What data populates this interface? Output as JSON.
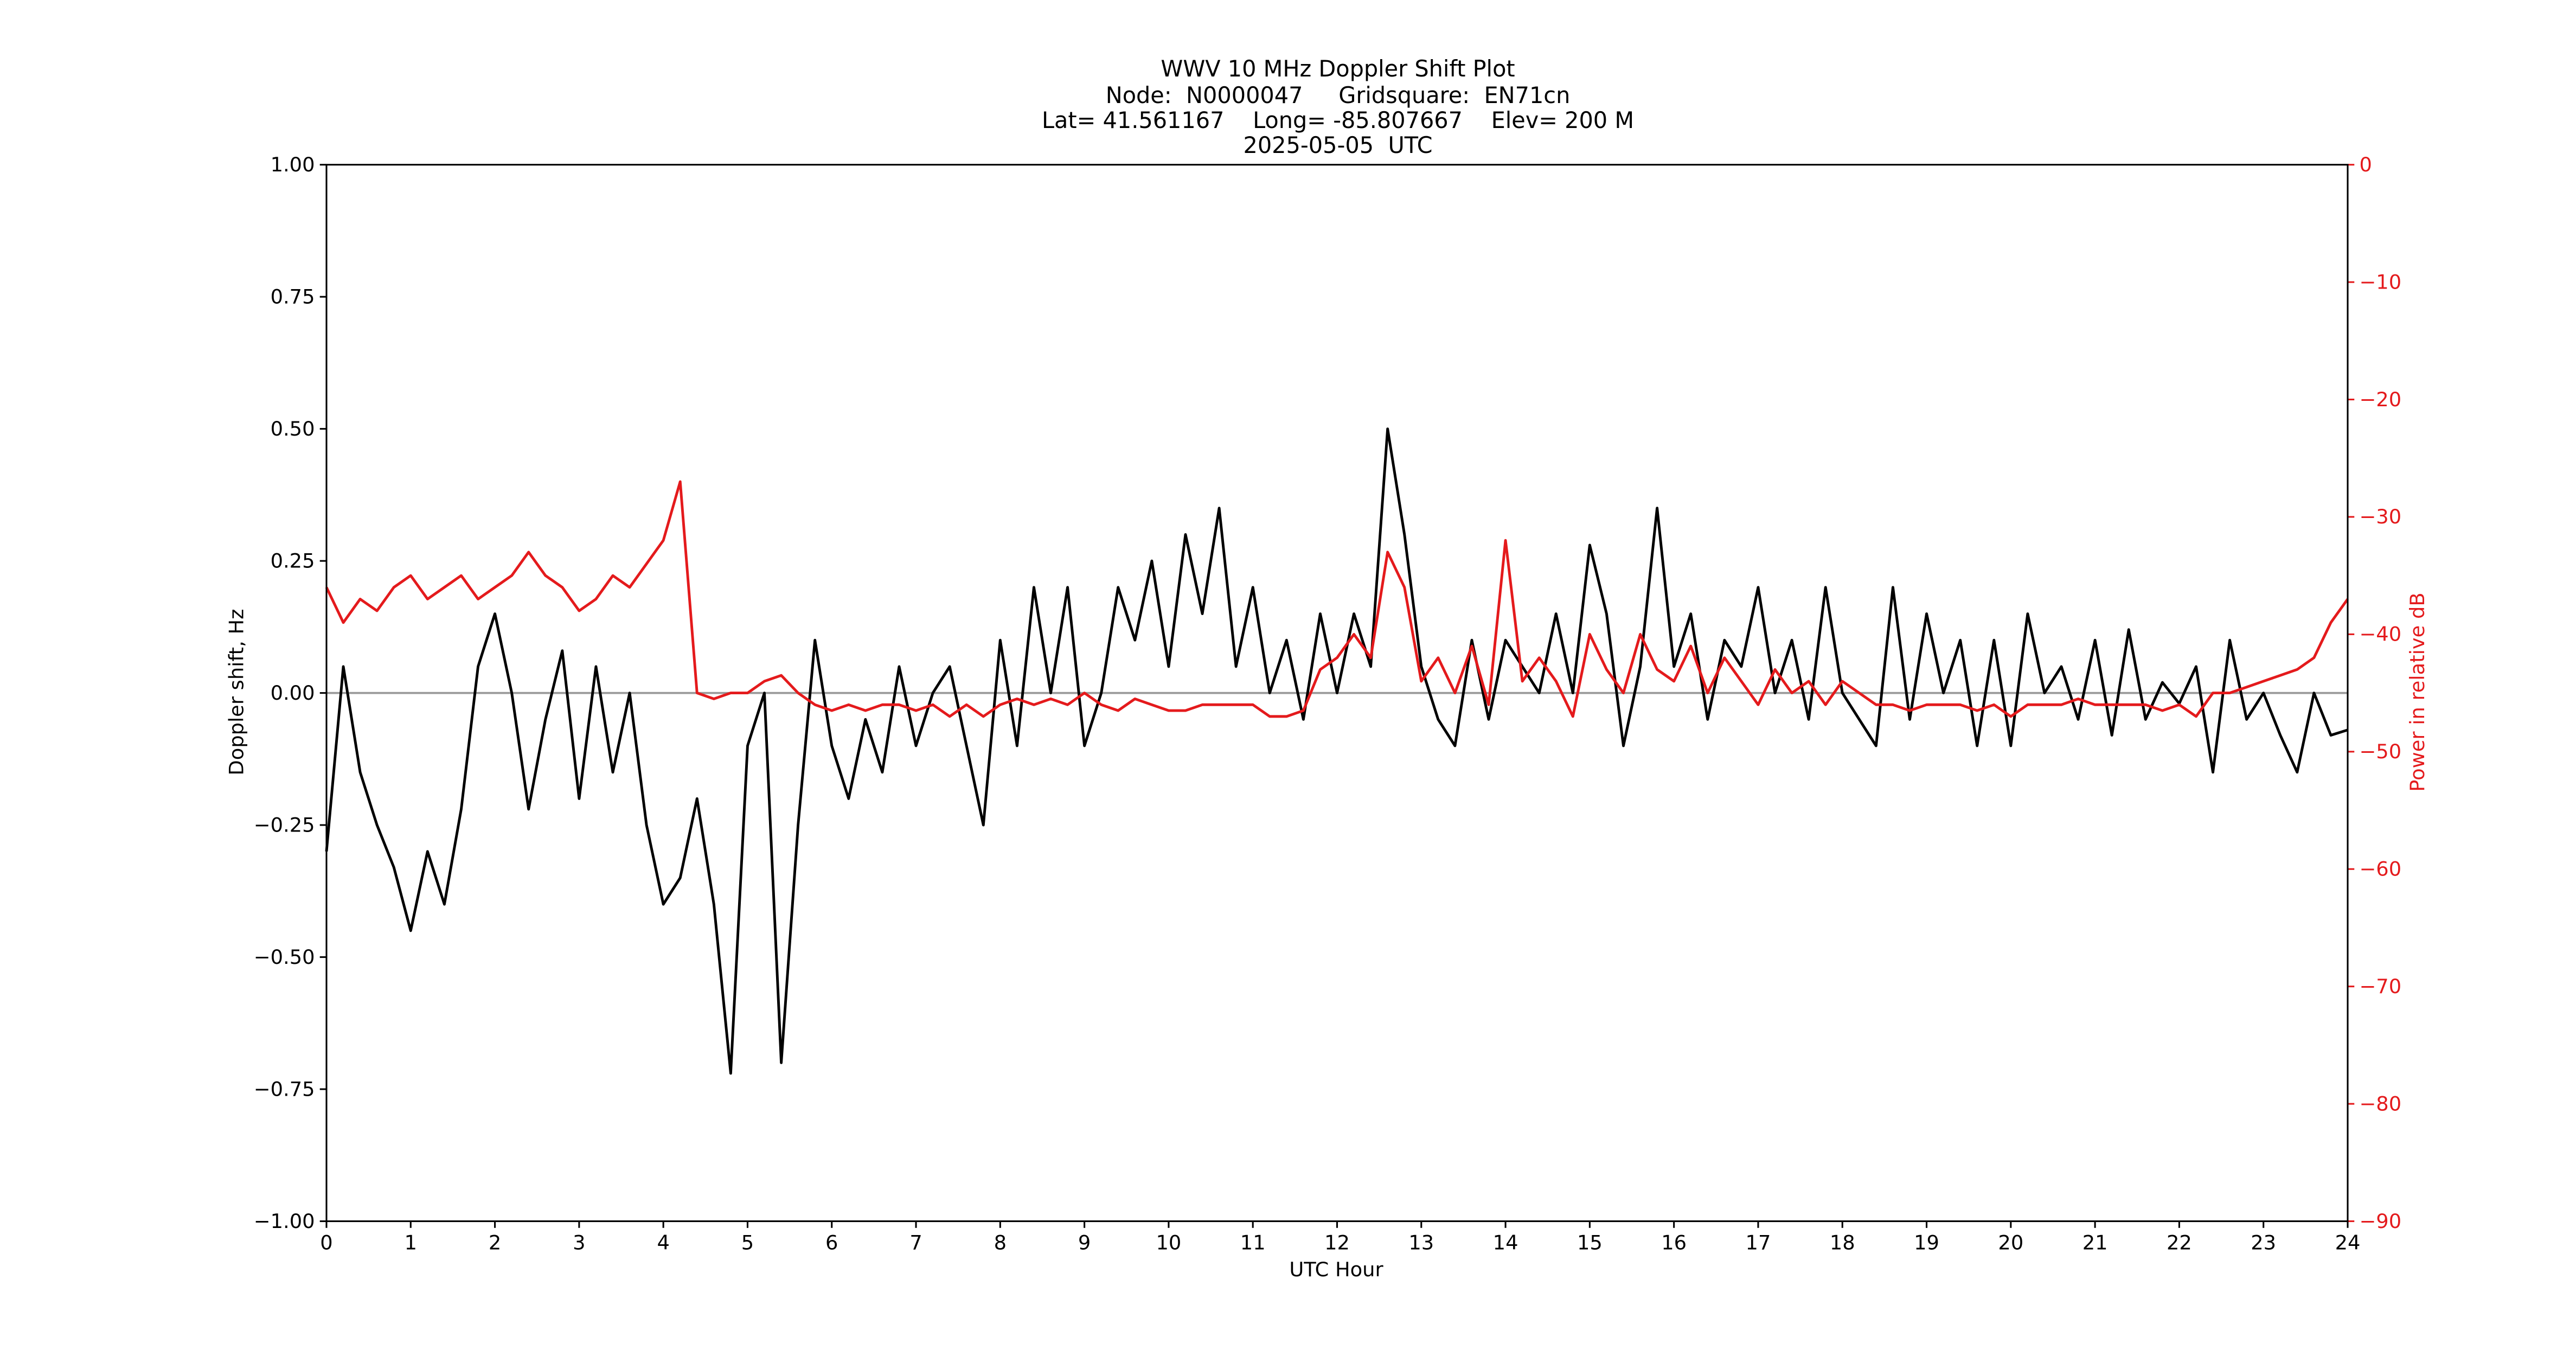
{
  "chart_data": {
    "type": "line",
    "title": [
      "WWV 10 MHz Doppler Shift Plot",
      "Node:  N0000047     Gridsquare:  EN71cn",
      "Lat= 41.561167    Long= -85.807667    Elev= 200 M",
      "2025-05-05  UTC"
    ],
    "x_label": "UTC Hour",
    "y_label": "Doppler shift, Hz",
    "y2_label": "Power in relative dB",
    "xlim": [
      0,
      24
    ],
    "xticks": [
      0,
      1,
      2,
      3,
      4,
      5,
      6,
      7,
      8,
      9,
      10,
      11,
      12,
      13,
      14,
      15,
      16,
      17,
      18,
      19,
      20,
      21,
      22,
      23,
      24
    ],
    "ylim": [
      -1,
      1
    ],
    "yticks": [
      {
        "value": -1,
        "label": "−1.00"
      },
      {
        "value": -0.75,
        "label": "−0.75"
      },
      {
        "value": -0.5,
        "label": "−0.50"
      },
      {
        "value": -0.25,
        "label": "−0.25"
      },
      {
        "value": 0,
        "label": "0.00"
      },
      {
        "value": 0.25,
        "label": "0.25"
      },
      {
        "value": 0.5,
        "label": "0.50"
      },
      {
        "value": 0.75,
        "label": "0.75"
      },
      {
        "value": 1,
        "label": "1.00"
      }
    ],
    "y2lim": [
      -90,
      0
    ],
    "y2ticks": [
      {
        "value": -90,
        "label": "−90"
      },
      {
        "value": -80,
        "label": "−80"
      },
      {
        "value": -70,
        "label": "−70"
      },
      {
        "value": -60,
        "label": "−60"
      },
      {
        "value": -50,
        "label": "−50"
      },
      {
        "value": -40,
        "label": "−40"
      },
      {
        "value": -30,
        "label": "−30"
      },
      {
        "value": -20,
        "label": "−20"
      },
      {
        "value": -10,
        "label": "−10"
      },
      0
    ],
    "y2_color": "#e41a1c",
    "x": [
      0,
      0.2,
      0.4,
      0.6,
      0.8,
      1,
      1.2,
      1.4,
      1.6,
      1.8,
      2,
      2.2,
      2.4,
      2.6,
      2.8,
      3,
      3.2,
      3.4,
      3.6,
      3.8,
      4,
      4.2,
      4.4,
      4.6,
      4.8,
      5,
      5.2,
      5.4,
      5.6,
      5.8,
      6,
      6.2,
      6.4,
      6.6,
      6.8,
      7,
      7.2,
      7.4,
      7.6,
      7.8,
      8,
      8.2,
      8.4,
      8.6,
      8.8,
      9,
      9.2,
      9.4,
      9.6,
      9.8,
      10,
      10.2,
      10.4,
      10.6,
      10.8,
      11,
      11.2,
      11.4,
      11.6,
      11.8,
      12,
      12.2,
      12.4,
      12.6,
      12.8,
      13,
      13.2,
      13.4,
      13.6,
      13.8,
      14,
      14.2,
      14.4,
      14.6,
      14.8,
      15,
      15.2,
      15.4,
      15.6,
      15.8,
      16,
      16.2,
      16.4,
      16.6,
      16.8,
      17,
      17.2,
      17.4,
      17.6,
      17.8,
      18,
      18.2,
      18.4,
      18.6,
      18.8,
      19,
      19.2,
      19.4,
      19.6,
      19.8,
      20,
      20.2,
      20.4,
      20.6,
      20.8,
      21,
      21.2,
      21.4,
      21.6,
      21.8,
      22,
      22.2,
      22.4,
      22.6,
      22.8,
      23,
      23.2,
      23.4,
      23.6,
      23.8,
      24
    ],
    "series": [
      {
        "color": "#000000",
        "axis": "y",
        "values": [
          -0.3,
          0.05,
          -0.15,
          -0.25,
          -0.33,
          -0.45,
          -0.3,
          -0.4,
          -0.22,
          0.05,
          0.15,
          0,
          -0.22,
          -0.05,
          0.08,
          -0.2,
          0.05,
          -0.15,
          0,
          -0.25,
          -0.4,
          -0.35,
          -0.2,
          -0.4,
          -0.72,
          -0.1,
          0,
          -0.7,
          -0.25,
          0.1,
          -0.1,
          -0.2,
          -0.05,
          -0.15,
          0.05,
          -0.1,
          0,
          0.05,
          -0.1,
          -0.25,
          0.1,
          -0.1,
          0.2,
          0,
          0.2,
          -0.1,
          0,
          0.2,
          0.1,
          0.25,
          0.05,
          0.3,
          0.15,
          0.35,
          0.05,
          0.2,
          0,
          0.1,
          -0.05,
          0.15,
          0,
          0.15,
          0.05,
          0.5,
          0.3,
          0.05,
          -0.05,
          -0.1,
          0.1,
          -0.05,
          0.1,
          0.05,
          0,
          0.15,
          0,
          0.28,
          0.15,
          -0.1,
          0.05,
          0.35,
          0.05,
          0.15,
          -0.05,
          0.1,
          0.05,
          0.2,
          0,
          0.1,
          -0.05,
          0.2,
          0,
          -0.05,
          -0.1,
          0.2,
          -0.05,
          0.15,
          0,
          0.1,
          -0.1,
          0.1,
          -0.1,
          0.15,
          0,
          0.05,
          -0.05,
          0.1,
          -0.08,
          0.12,
          -0.05,
          0.02,
          -0.02,
          0.05,
          -0.15,
          0.1,
          -0.05,
          0,
          -0.08,
          -0.15,
          0,
          -0.08,
          -0.07
        ]
      },
      {
        "color": "#e41a1c",
        "axis": "y2",
        "values": [
          -36,
          -39,
          -37,
          -38,
          -36,
          -35,
          -37,
          -36,
          -35,
          -37,
          -36,
          -35,
          -33,
          -35,
          -36,
          -38,
          -37,
          -35,
          -36,
          -34,
          -32,
          -27,
          -45,
          -45.5,
          -45,
          -45,
          -44,
          -43.5,
          -45,
          -46,
          -46.5,
          -46,
          -46.5,
          -46,
          -46,
          -46.5,
          -46,
          -47,
          -46,
          -47,
          -46,
          -45.5,
          -46,
          -45.5,
          -46,
          -45,
          -46,
          -46.5,
          -45.5,
          -46,
          -46.5,
          -46.5,
          -46,
          -46,
          -46,
          -46,
          -47,
          -47,
          -46.5,
          -43,
          -42,
          -40,
          -42,
          -33,
          -36,
          -44,
          -42,
          -45,
          -41,
          -46,
          -32,
          -44,
          -42,
          -44,
          -47,
          -40,
          -43,
          -45,
          -40,
          -43,
          -44,
          -41,
          -45,
          -42,
          -44,
          -46,
          -43,
          -45,
          -44,
          -46,
          -44,
          -45,
          -46,
          -46,
          -46.5,
          -46,
          -46,
          -46,
          -46.5,
          -46,
          -47,
          -46,
          -46,
          -46,
          -45.5,
          -46,
          -46,
          -46,
          -46,
          -46.5,
          -46,
          -47,
          -45,
          -45,
          -44.5,
          -44,
          -43.5,
          -43,
          -42,
          -39,
          -37
        ]
      }
    ]
  }
}
